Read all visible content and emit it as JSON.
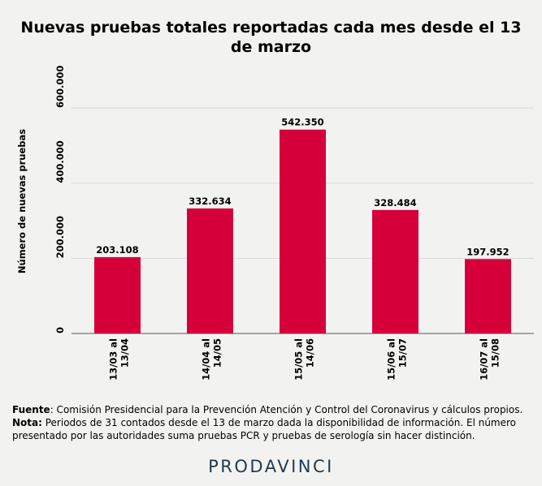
{
  "chart_data": {
    "type": "bar",
    "title": "Nuevas pruebas totales reportadas cada mes desde el 13 de marzo",
    "ylabel": "Número de nuevas pruebas",
    "xlabel": "",
    "categories": [
      [
        "13/03 al",
        "13/04"
      ],
      [
        "14/04 al",
        "14/05"
      ],
      [
        "15/05 al",
        "14/06"
      ],
      [
        "15/06 al",
        "15/07"
      ],
      [
        "16/07 al",
        "15/08"
      ]
    ],
    "values": [
      203108,
      332634,
      542350,
      328484,
      197952
    ],
    "value_labels": [
      "203.108",
      "332.634",
      "542.350",
      "328.484",
      "197.952"
    ],
    "ylim": [
      0,
      600000
    ],
    "yticks": [
      0,
      200000,
      400000,
      600000
    ],
    "ytick_labels": [
      "0",
      "200.000",
      "400.000",
      "600.000"
    ],
    "grid": true,
    "bar_color": "#d5003a"
  },
  "notes": {
    "source_label": "Fuente",
    "source_text": ": Comisión Presidencial para la Prevención Atención y Control del Coronavirus y cálculos propios.",
    "note_label": "Nota:",
    "note_text": " Periodos de 31 contados desde el 13 de marzo dada la disponibilidad de información. El número presentado por las autoridades suma pruebas PCR y pruebas de serología sin hacer distinción."
  },
  "brand": "PRODAVINCI",
  "colors": {
    "background": "#f2f3f1",
    "brand": "#1f3a52"
  }
}
